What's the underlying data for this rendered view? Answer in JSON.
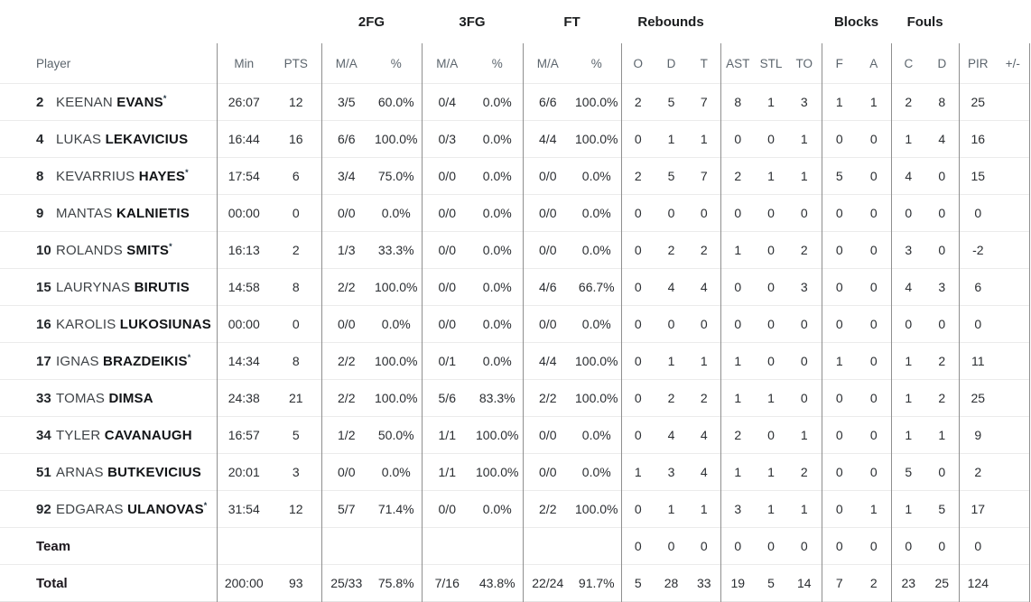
{
  "table": {
    "starter_mark": "*",
    "groups": {
      "fg2": "2FG",
      "fg3": "3FG",
      "ft": "FT",
      "rebounds": "Rebounds",
      "blocks": "Blocks",
      "fouls": "Fouls"
    },
    "headers": {
      "player": "Player",
      "min": "Min",
      "pts": "PTS",
      "ma": "M/A",
      "pct": "%",
      "o": "O",
      "d": "D",
      "t": "T",
      "ast": "AST",
      "stl": "STL",
      "to": "TO",
      "f": "F",
      "a": "A",
      "c": "C",
      "pir": "PIR",
      "plusminus": "+/-"
    },
    "rows": [
      {
        "number": "2",
        "first": "KEENAN",
        "last": "EVANS",
        "starter": true,
        "min": "26:07",
        "pts": "12",
        "fg2_ma": "3/5",
        "fg2_pct": "60.0%",
        "fg3_ma": "0/4",
        "fg3_pct": "0.0%",
        "ft_ma": "6/6",
        "ft_pct": "100.0%",
        "reb_o": "2",
        "reb_d": "5",
        "reb_t": "7",
        "ast": "8",
        "stl": "1",
        "to": "3",
        "blk_f": "1",
        "blk_a": "1",
        "foul_c": "2",
        "foul_d": "8",
        "pir": "25",
        "pm": ""
      },
      {
        "number": "4",
        "first": "LUKAS",
        "last": "LEKAVICIUS",
        "starter": false,
        "min": "16:44",
        "pts": "16",
        "fg2_ma": "6/6",
        "fg2_pct": "100.0%",
        "fg3_ma": "0/3",
        "fg3_pct": "0.0%",
        "ft_ma": "4/4",
        "ft_pct": "100.0%",
        "reb_o": "0",
        "reb_d": "1",
        "reb_t": "1",
        "ast": "0",
        "stl": "0",
        "to": "1",
        "blk_f": "0",
        "blk_a": "0",
        "foul_c": "1",
        "foul_d": "4",
        "pir": "16",
        "pm": ""
      },
      {
        "number": "8",
        "first": "KEVARRIUS",
        "last": "HAYES",
        "starter": true,
        "min": "17:54",
        "pts": "6",
        "fg2_ma": "3/4",
        "fg2_pct": "75.0%",
        "fg3_ma": "0/0",
        "fg3_pct": "0.0%",
        "ft_ma": "0/0",
        "ft_pct": "0.0%",
        "reb_o": "2",
        "reb_d": "5",
        "reb_t": "7",
        "ast": "2",
        "stl": "1",
        "to": "1",
        "blk_f": "5",
        "blk_a": "0",
        "foul_c": "4",
        "foul_d": "0",
        "pir": "15",
        "pm": ""
      },
      {
        "number": "9",
        "first": "MANTAS",
        "last": "KALNIETIS",
        "starter": false,
        "min": "00:00",
        "pts": "0",
        "fg2_ma": "0/0",
        "fg2_pct": "0.0%",
        "fg3_ma": "0/0",
        "fg3_pct": "0.0%",
        "ft_ma": "0/0",
        "ft_pct": "0.0%",
        "reb_o": "0",
        "reb_d": "0",
        "reb_t": "0",
        "ast": "0",
        "stl": "0",
        "to": "0",
        "blk_f": "0",
        "blk_a": "0",
        "foul_c": "0",
        "foul_d": "0",
        "pir": "0",
        "pm": ""
      },
      {
        "number": "10",
        "first": "ROLANDS",
        "last": "SMITS",
        "starter": true,
        "min": "16:13",
        "pts": "2",
        "fg2_ma": "1/3",
        "fg2_pct": "33.3%",
        "fg3_ma": "0/0",
        "fg3_pct": "0.0%",
        "ft_ma": "0/0",
        "ft_pct": "0.0%",
        "reb_o": "0",
        "reb_d": "2",
        "reb_t": "2",
        "ast": "1",
        "stl": "0",
        "to": "2",
        "blk_f": "0",
        "blk_a": "0",
        "foul_c": "3",
        "foul_d": "0",
        "pir": "-2",
        "pm": ""
      },
      {
        "number": "15",
        "first": "LAURYNAS",
        "last": "BIRUTIS",
        "starter": false,
        "min": "14:58",
        "pts": "8",
        "fg2_ma": "2/2",
        "fg2_pct": "100.0%",
        "fg3_ma": "0/0",
        "fg3_pct": "0.0%",
        "ft_ma": "4/6",
        "ft_pct": "66.7%",
        "reb_o": "0",
        "reb_d": "4",
        "reb_t": "4",
        "ast": "0",
        "stl": "0",
        "to": "3",
        "blk_f": "0",
        "blk_a": "0",
        "foul_c": "4",
        "foul_d": "3",
        "pir": "6",
        "pm": ""
      },
      {
        "number": "16",
        "first": "KAROLIS",
        "last": "LUKOSIUNAS",
        "starter": false,
        "min": "00:00",
        "pts": "0",
        "fg2_ma": "0/0",
        "fg2_pct": "0.0%",
        "fg3_ma": "0/0",
        "fg3_pct": "0.0%",
        "ft_ma": "0/0",
        "ft_pct": "0.0%",
        "reb_o": "0",
        "reb_d": "0",
        "reb_t": "0",
        "ast": "0",
        "stl": "0",
        "to": "0",
        "blk_f": "0",
        "blk_a": "0",
        "foul_c": "0",
        "foul_d": "0",
        "pir": "0",
        "pm": ""
      },
      {
        "number": "17",
        "first": "IGNAS",
        "last": "BRAZDEIKIS",
        "starter": true,
        "min": "14:34",
        "pts": "8",
        "fg2_ma": "2/2",
        "fg2_pct": "100.0%",
        "fg3_ma": "0/1",
        "fg3_pct": "0.0%",
        "ft_ma": "4/4",
        "ft_pct": "100.0%",
        "reb_o": "0",
        "reb_d": "1",
        "reb_t": "1",
        "ast": "1",
        "stl": "0",
        "to": "0",
        "blk_f": "1",
        "blk_a": "0",
        "foul_c": "1",
        "foul_d": "2",
        "pir": "11",
        "pm": ""
      },
      {
        "number": "33",
        "first": "TOMAS",
        "last": "DIMSA",
        "starter": false,
        "min": "24:38",
        "pts": "21",
        "fg2_ma": "2/2",
        "fg2_pct": "100.0%",
        "fg3_ma": "5/6",
        "fg3_pct": "83.3%",
        "ft_ma": "2/2",
        "ft_pct": "100.0%",
        "reb_o": "0",
        "reb_d": "2",
        "reb_t": "2",
        "ast": "1",
        "stl": "1",
        "to": "0",
        "blk_f": "0",
        "blk_a": "0",
        "foul_c": "1",
        "foul_d": "2",
        "pir": "25",
        "pm": ""
      },
      {
        "number": "34",
        "first": "TYLER",
        "last": "CAVANAUGH",
        "starter": false,
        "min": "16:57",
        "pts": "5",
        "fg2_ma": "1/2",
        "fg2_pct": "50.0%",
        "fg3_ma": "1/1",
        "fg3_pct": "100.0%",
        "ft_ma": "0/0",
        "ft_pct": "0.0%",
        "reb_o": "0",
        "reb_d": "4",
        "reb_t": "4",
        "ast": "2",
        "stl": "0",
        "to": "1",
        "blk_f": "0",
        "blk_a": "0",
        "foul_c": "1",
        "foul_d": "1",
        "pir": "9",
        "pm": ""
      },
      {
        "number": "51",
        "first": "ARNAS",
        "last": "BUTKEVICIUS",
        "starter": false,
        "min": "20:01",
        "pts": "3",
        "fg2_ma": "0/0",
        "fg2_pct": "0.0%",
        "fg3_ma": "1/1",
        "fg3_pct": "100.0%",
        "ft_ma": "0/0",
        "ft_pct": "0.0%",
        "reb_o": "1",
        "reb_d": "3",
        "reb_t": "4",
        "ast": "1",
        "stl": "1",
        "to": "2",
        "blk_f": "0",
        "blk_a": "0",
        "foul_c": "5",
        "foul_d": "0",
        "pir": "2",
        "pm": ""
      },
      {
        "number": "92",
        "first": "EDGARAS",
        "last": "ULANOVAS",
        "starter": true,
        "min": "31:54",
        "pts": "12",
        "fg2_ma": "5/7",
        "fg2_pct": "71.4%",
        "fg3_ma": "0/0",
        "fg3_pct": "0.0%",
        "ft_ma": "2/2",
        "ft_pct": "100.0%",
        "reb_o": "0",
        "reb_d": "1",
        "reb_t": "1",
        "ast": "3",
        "stl": "1",
        "to": "1",
        "blk_f": "0",
        "blk_a": "1",
        "foul_c": "1",
        "foul_d": "5",
        "pir": "17",
        "pm": ""
      }
    ],
    "team_row": {
      "label": "Team",
      "min": "",
      "pts": "",
      "fg2_ma": "",
      "fg2_pct": "",
      "fg3_ma": "",
      "fg3_pct": "",
      "ft_ma": "",
      "ft_pct": "",
      "reb_o": "0",
      "reb_d": "0",
      "reb_t": "0",
      "ast": "0",
      "stl": "0",
      "to": "0",
      "blk_f": "0",
      "blk_a": "0",
      "foul_c": "0",
      "foul_d": "0",
      "pir": "0",
      "pm": ""
    },
    "total_row": {
      "label": "Total",
      "min": "200:00",
      "pts": "93",
      "fg2_ma": "25/33",
      "fg2_pct": "75.8%",
      "fg3_ma": "7/16",
      "fg3_pct": "43.8%",
      "ft_ma": "22/24",
      "ft_pct": "91.7%",
      "reb_o": "5",
      "reb_d": "28",
      "reb_t": "33",
      "ast": "19",
      "stl": "5",
      "to": "14",
      "blk_f": "7",
      "blk_a": "2",
      "foul_c": "23",
      "foul_d": "25",
      "pir": "124",
      "pm": ""
    }
  },
  "colors": {
    "divider_strong": "#8f8f8f",
    "divider_light": "#ebebeb",
    "header_text": "#5c656d",
    "stat_text": "#2a2d31",
    "name_bold": "#121417"
  }
}
